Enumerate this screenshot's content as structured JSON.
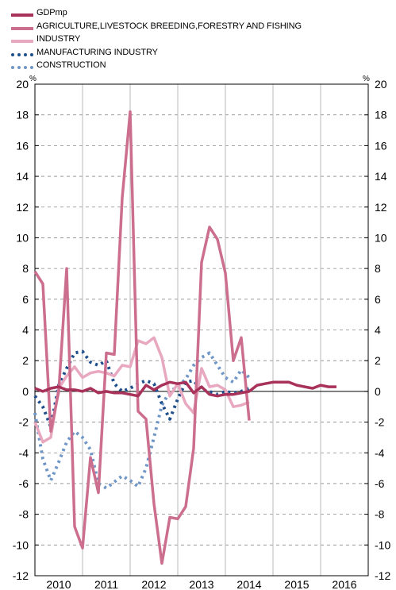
{
  "chart_data": {
    "type": "line",
    "title": "",
    "xlabel": "",
    "ylabel": "",
    "y_unit": "%",
    "ylim": [
      -12,
      20
    ],
    "yticks": [
      -12,
      -10,
      -8,
      -6,
      -4,
      -2,
      0,
      2,
      4,
      6,
      8,
      10,
      12,
      14,
      16,
      18,
      20
    ],
    "years": [
      "2010",
      "2011",
      "2012",
      "2013",
      "2014",
      "2015",
      "2016"
    ],
    "x_unit": "month",
    "grid": "dashed-horizontal, solid-vertical-year-separators",
    "legend_position": "top-left",
    "series": [
      {
        "name": "GDPmp",
        "color": "#a8325a",
        "style": "solid",
        "points": [
          [
            "2010-01",
            0.2
          ],
          [
            "2010-03",
            0.0
          ],
          [
            "2010-05",
            0.2
          ],
          [
            "2010-07",
            0.3
          ],
          [
            "2010-09",
            0.1
          ],
          [
            "2010-11",
            0.1
          ],
          [
            "2011-01",
            0.0
          ],
          [
            "2011-03",
            0.2
          ],
          [
            "2011-05",
            -0.1
          ],
          [
            "2011-07",
            0.0
          ],
          [
            "2011-09",
            -0.1
          ],
          [
            "2011-11",
            -0.1
          ],
          [
            "2012-01",
            -0.2
          ],
          [
            "2012-03",
            -0.3
          ],
          [
            "2012-05",
            0.4
          ],
          [
            "2012-07",
            0.1
          ],
          [
            "2012-09",
            0.4
          ],
          [
            "2012-11",
            0.6
          ],
          [
            "2013-01",
            0.5
          ],
          [
            "2013-03",
            0.6
          ],
          [
            "2013-05",
            -0.1
          ],
          [
            "2013-07",
            0.3
          ],
          [
            "2013-09",
            -0.2
          ],
          [
            "2013-11",
            -0.3
          ],
          [
            "2014-01",
            -0.2
          ],
          [
            "2014-03",
            -0.2
          ],
          [
            "2014-05",
            -0.1
          ],
          [
            "2014-07",
            0.0
          ],
          [
            "2014-09",
            0.4
          ],
          [
            "2014-11",
            0.5
          ],
          [
            "2015-01",
            0.6
          ],
          [
            "2015-03",
            0.6
          ],
          [
            "2015-05",
            0.6
          ],
          [
            "2015-07",
            0.4
          ],
          [
            "2015-09",
            0.3
          ],
          [
            "2015-11",
            0.2
          ],
          [
            "2016-01",
            0.4
          ],
          [
            "2016-03",
            0.3
          ],
          [
            "2016-05",
            0.3
          ]
        ]
      },
      {
        "name": "AGRICULTURE,LIVESTOCK BREEDING,FORESTRY AND FISHING",
        "color": "#cc6f8f",
        "style": "solid",
        "points": [
          [
            "2010-01",
            7.8
          ],
          [
            "2010-03",
            7.0
          ],
          [
            "2010-05",
            -2.6
          ],
          [
            "2010-07",
            0.0
          ],
          [
            "2010-09",
            8.0
          ],
          [
            "2010-11",
            -8.8
          ],
          [
            "2011-01",
            -10.2
          ],
          [
            "2011-03",
            -4.3
          ],
          [
            "2011-05",
            -6.6
          ],
          [
            "2011-07",
            2.5
          ],
          [
            "2011-09",
            2.4
          ],
          [
            "2011-11",
            12.6
          ],
          [
            "2012-01",
            18.2
          ],
          [
            "2012-03",
            -1.3
          ],
          [
            "2012-05",
            -1.8
          ],
          [
            "2012-07",
            -7.3
          ],
          [
            "2012-09",
            -11.2
          ],
          [
            "2012-11",
            -8.2
          ],
          [
            "2013-01",
            -8.3
          ],
          [
            "2013-03",
            -7.5
          ],
          [
            "2013-05",
            -3.7
          ],
          [
            "2013-07",
            8.4
          ],
          [
            "2013-09",
            10.7
          ],
          [
            "2013-11",
            9.9
          ],
          [
            "2014-01",
            7.7
          ],
          [
            "2014-03",
            2.0
          ],
          [
            "2014-05",
            3.5
          ],
          [
            "2014-07",
            -1.9
          ]
        ],
        "x_positions_note": ""
      },
      {
        "name": "INDUSTRY",
        "color": "#e8a8bf",
        "style": "solid",
        "points": [
          [
            "2010-01",
            -2.0
          ],
          [
            "2010-03",
            -3.3
          ],
          [
            "2010-05",
            -3.0
          ],
          [
            "2010-07",
            0.2
          ],
          [
            "2010-09",
            1.0
          ],
          [
            "2010-11",
            1.6
          ],
          [
            "2011-01",
            0.9
          ],
          [
            "2011-03",
            1.2
          ],
          [
            "2011-05",
            1.3
          ],
          [
            "2011-07",
            1.2
          ],
          [
            "2011-09",
            1.0
          ],
          [
            "2011-11",
            1.7
          ],
          [
            "2012-01",
            1.6
          ],
          [
            "2012-03",
            3.3
          ],
          [
            "2012-05",
            3.1
          ],
          [
            "2012-07",
            3.5
          ],
          [
            "2012-09",
            2.2
          ],
          [
            "2012-11",
            -0.3
          ],
          [
            "2013-01",
            0.5
          ],
          [
            "2013-03",
            -0.8
          ],
          [
            "2013-05",
            -1.4
          ],
          [
            "2013-07",
            1.5
          ],
          [
            "2013-09",
            0.3
          ],
          [
            "2013-11",
            0.4
          ],
          [
            "2014-01",
            0.1
          ],
          [
            "2014-03",
            -1.0
          ],
          [
            "2014-05",
            -0.9
          ],
          [
            "2014-07",
            -0.7
          ]
        ]
      },
      {
        "name": "MANUFACTURING INDUSTRY",
        "color": "#1f4e8c",
        "style": "dotted",
        "points": [
          [
            "2010-01",
            -0.3
          ],
          [
            "2010-03",
            -1.0
          ],
          [
            "2010-05",
            -2.3
          ],
          [
            "2010-07",
            0.4
          ],
          [
            "2010-09",
            1.5
          ],
          [
            "2010-11",
            2.5
          ],
          [
            "2011-01",
            2.6
          ],
          [
            "2011-03",
            1.9
          ],
          [
            "2011-05",
            1.7
          ],
          [
            "2011-07",
            2.0
          ],
          [
            "2011-09",
            0.5
          ],
          [
            "2011-11",
            0.0
          ],
          [
            "2012-01",
            0.2
          ],
          [
            "2012-03",
            0.5
          ],
          [
            "2012-05",
            0.7
          ],
          [
            "2012-07",
            0.5
          ],
          [
            "2012-09",
            -0.8
          ],
          [
            "2012-11",
            -1.8
          ],
          [
            "2013-01",
            -0.5
          ],
          [
            "2013-03",
            0.6
          ],
          [
            "2013-05",
            0.7
          ],
          [
            "2013-07",
            0.1
          ],
          [
            "2013-09",
            0.0
          ],
          [
            "2013-11",
            -0.2
          ],
          [
            "2014-01",
            0.0
          ],
          [
            "2014-03",
            -0.1
          ],
          [
            "2014-05",
            0.0
          ],
          [
            "2014-07",
            0.2
          ]
        ]
      },
      {
        "name": "CONSTRUCTION",
        "color": "#6f96c6",
        "style": "dotted",
        "points": [
          [
            "2010-01",
            -1.4
          ],
          [
            "2010-03",
            -4.4
          ],
          [
            "2010-05",
            -5.8
          ],
          [
            "2010-07",
            -4.6
          ],
          [
            "2010-09",
            -3.3
          ],
          [
            "2010-11",
            -2.6
          ],
          [
            "2011-01",
            -3.0
          ],
          [
            "2011-03",
            -3.8
          ],
          [
            "2011-05",
            -6.0
          ],
          [
            "2011-07",
            -6.3
          ],
          [
            "2011-09",
            -5.9
          ],
          [
            "2011-11",
            -5.5
          ],
          [
            "2012-01",
            -5.8
          ],
          [
            "2012-03",
            -6.2
          ],
          [
            "2012-05",
            -5.0
          ],
          [
            "2012-07",
            -3.0
          ],
          [
            "2012-09",
            -0.9
          ],
          [
            "2012-11",
            0.0
          ],
          [
            "2013-01",
            0.3
          ],
          [
            "2013-03",
            0.8
          ],
          [
            "2013-05",
            1.7
          ],
          [
            "2013-07",
            2.2
          ],
          [
            "2013-09",
            2.5
          ],
          [
            "2013-11",
            1.7
          ],
          [
            "2014-01",
            0.9
          ],
          [
            "2014-03",
            0.6
          ],
          [
            "2014-05",
            1.4
          ],
          [
            "2014-07",
            0.9
          ]
        ]
      }
    ]
  }
}
